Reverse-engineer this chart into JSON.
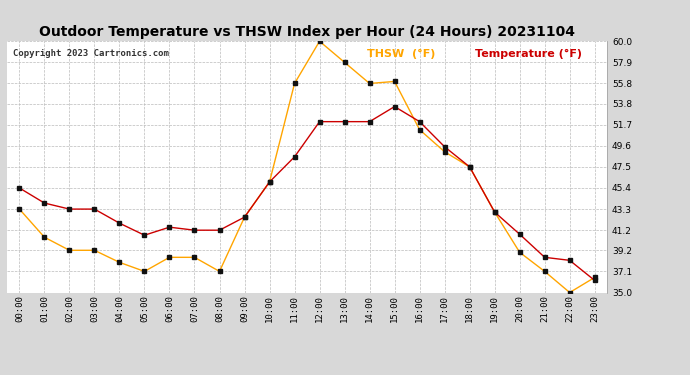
{
  "title": "Outdoor Temperature vs THSW Index per Hour (24 Hours) 20231104",
  "copyright": "Copyright 2023 Cartronics.com",
  "legend_thsw": "THSW  (°F)",
  "legend_temp": "Temperature (°F)",
  "thsw_color": "#FFA500",
  "temp_color": "#CC0000",
  "background_color": "#d8d8d8",
  "plot_bg_color": "#ffffff",
  "grid_color": "#bbbbbb",
  "hours": [
    "00:00",
    "01:00",
    "02:00",
    "03:00",
    "04:00",
    "05:00",
    "06:00",
    "07:00",
    "08:00",
    "09:00",
    "10:00",
    "11:00",
    "12:00",
    "13:00",
    "14:00",
    "15:00",
    "16:00",
    "17:00",
    "18:00",
    "19:00",
    "20:00",
    "21:00",
    "22:00",
    "23:00"
  ],
  "temperature": [
    45.4,
    43.9,
    43.3,
    43.3,
    41.9,
    40.7,
    41.5,
    41.2,
    41.2,
    42.5,
    46.0,
    48.5,
    52.0,
    52.0,
    52.0,
    53.5,
    52.0,
    49.5,
    47.5,
    43.0,
    40.8,
    38.5,
    38.2,
    36.2
  ],
  "thsw": [
    43.3,
    40.5,
    39.2,
    39.2,
    38.0,
    37.1,
    38.5,
    38.5,
    37.1,
    42.5,
    46.0,
    55.8,
    60.0,
    57.9,
    55.8,
    56.0,
    51.2,
    49.0,
    47.5,
    43.0,
    39.0,
    37.1,
    35.0,
    36.5
  ],
  "ylim_min": 35.0,
  "ylim_max": 60.0,
  "yticks": [
    35.0,
    37.1,
    39.2,
    41.2,
    43.3,
    45.4,
    47.5,
    49.6,
    51.7,
    53.8,
    55.8,
    57.9,
    60.0
  ],
  "marker": "s",
  "marker_color": "#111111",
  "marker_size": 2.5,
  "linewidth": 1.0,
  "title_fontsize": 10,
  "copyright_fontsize": 6.5,
  "legend_fontsize": 8,
  "tick_fontsize": 6.5,
  "ytick_fontsize": 6.5
}
